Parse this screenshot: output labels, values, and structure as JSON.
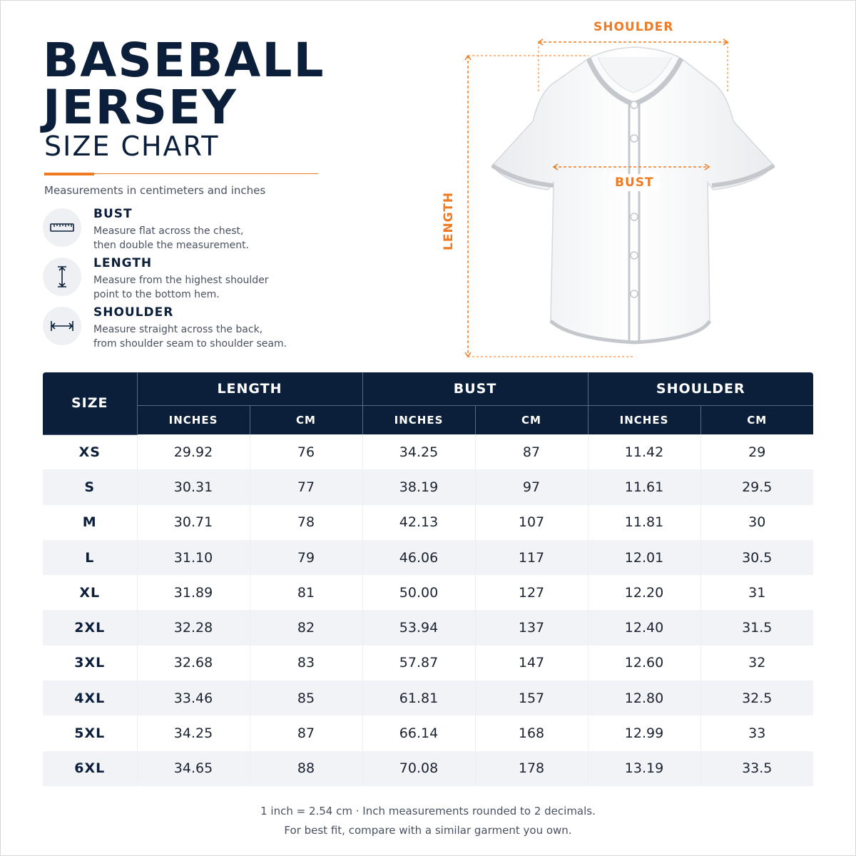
{
  "header": {
    "title_line1": "BASEBALL",
    "title_line2": "JERSEY",
    "title_line3": "SIZE CHART",
    "subtitle": "Measurements in centimeters and inches"
  },
  "legend": [
    {
      "icon": "ruler-icon",
      "title": "BUST",
      "line1": "Measure flat across the chest,",
      "line2": "then double the measurement."
    },
    {
      "icon": "vertical-arrow-icon",
      "title": "LENGTH",
      "line1": "Measure from the highest shoulder",
      "line2": "point to the bottom hem."
    },
    {
      "icon": "horizontal-arrow-icon",
      "title": "SHOULDER",
      "line1": "Measure straight across the back,",
      "line2": "from shoulder seam to shoulder seam."
    }
  ],
  "diagram": {
    "shoulder_label": "SHOULDER",
    "bust_label": "BUST",
    "length_label": "LENGTH"
  },
  "table": {
    "size_header": "SIZE",
    "groups": [
      "LENGTH",
      "BUST",
      "SHOULDER"
    ],
    "subheaders": [
      "INCHES",
      "CM",
      "INCHES",
      "CM",
      "INCHES",
      "CM"
    ],
    "rows": [
      [
        "XS",
        "29.92",
        "76",
        "34.25",
        "87",
        "11.42",
        "29"
      ],
      [
        "S",
        "30.31",
        "77",
        "38.19",
        "97",
        "11.61",
        "29.5"
      ],
      [
        "M",
        "30.71",
        "78",
        "42.13",
        "107",
        "11.81",
        "30"
      ],
      [
        "L",
        "31.10",
        "79",
        "46.06",
        "117",
        "12.01",
        "30.5"
      ],
      [
        "XL",
        "31.89",
        "81",
        "50.00",
        "127",
        "12.20",
        "31"
      ],
      [
        "2XL",
        "32.28",
        "82",
        "53.94",
        "137",
        "12.40",
        "31.5"
      ],
      [
        "3XL",
        "32.68",
        "83",
        "57.87",
        "147",
        "12.60",
        "32"
      ],
      [
        "4XL",
        "33.46",
        "85",
        "61.81",
        "157",
        "12.80",
        "32.5"
      ],
      [
        "5XL",
        "34.25",
        "87",
        "66.14",
        "168",
        "12.99",
        "33"
      ],
      [
        "6XL",
        "34.65",
        "88",
        "70.08",
        "178",
        "13.19",
        "33.5"
      ]
    ]
  },
  "footer": {
    "line1": "1 inch = 2.54 cm · Inch measurements rounded to 2 decimals.",
    "line2": "For best fit, compare with a similar garment you own."
  },
  "colors": {
    "navy": "#0b1f3a",
    "accent_orange": "#f07a22",
    "stripe_gray": "#f1f3f6"
  }
}
